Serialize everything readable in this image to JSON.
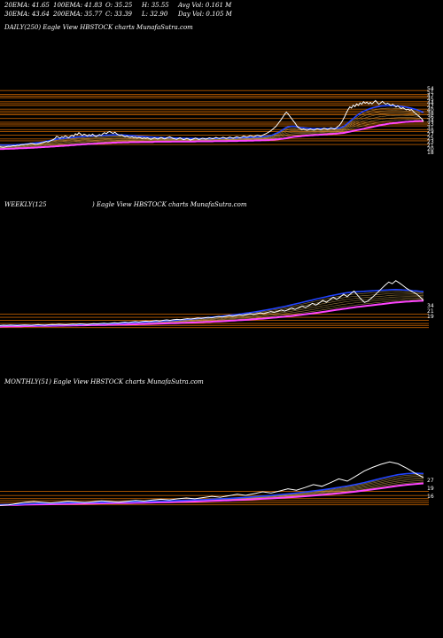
{
  "stats": {
    "ema20": "20EMA: 41.65",
    "ema100": "100EMA: 41.83",
    "open": "O: 35.25",
    "high": "H: 35.55",
    "avgvol": "Avg Vol: 0.161 M",
    "ema30": "30EMA: 43.64",
    "ema200": "200EMA: 35.77",
    "close": "C: 33.39",
    "low": "L: 32.90",
    "dayvol": "Day Vol: 0.105 M"
  },
  "panels": {
    "daily": "DAILY(250) Eagle    View  HBSTOCK charts MunafaSutra.com",
    "weekly_a": "WEEKLY(125",
    "weekly_b": ") Eagle    View  HBSTOCK charts MunafaSutra.com",
    "monthly": "MONTHLY(51) Eagle    View  HBSTOCK charts MunafaSutra.com"
  },
  "colors": {
    "background": "#000000",
    "price": "#ffffff",
    "ema_fast": "#2244ff",
    "ema_slow": "#ff44ff",
    "levels": "#cc6600",
    "ema_band": "#c8a050"
  },
  "chart_data": [
    {
      "type": "line",
      "name": "daily",
      "ylim": [
        12,
        52
      ],
      "levels": [
        50,
        48,
        47,
        46,
        44,
        43,
        42,
        40,
        39,
        38,
        37,
        35,
        33,
        32,
        31,
        29,
        28,
        26,
        24,
        23,
        21
      ],
      "right_ticks": [
        "54",
        "51",
        "47",
        "45",
        "44",
        "42",
        "40",
        "38",
        "36",
        "34",
        "33",
        "31",
        "29",
        "27",
        "25",
        "23",
        "21",
        "20",
        "18"
      ],
      "price": [
        19.8,
        19.6,
        19.5,
        19.7,
        19.9,
        20.1,
        20.0,
        20.2,
        20.4,
        20.3,
        20.6,
        20.5,
        20.8,
        21.0,
        20.9,
        21.2,
        21.1,
        21.4,
        21.6,
        21.5,
        21.3,
        21.1,
        21.3,
        21.5,
        21.8,
        22.0,
        22.3,
        22.6,
        22.4,
        22.8,
        23.2,
        23.6,
        24.2,
        25.4,
        25.0,
        24.4,
        25.2,
        24.8,
        25.6,
        25.2,
        24.6,
        25.4,
        26.0,
        25.4,
        26.8,
        26.2,
        27.4,
        26.6,
        25.8,
        26.6,
        26.2,
        25.6,
        26.4,
        25.8,
        26.6,
        25.8,
        25.2,
        25.8,
        26.4,
        25.9,
        26.8,
        27.4,
        26.8,
        27.6,
        28.0,
        27.4,
        27.0,
        27.6,
        26.8,
        26.2,
        25.8,
        26.2,
        25.6,
        25.2,
        25.6,
        25.0,
        24.8,
        25.2,
        24.6,
        24.9,
        24.4,
        24.8,
        24.6,
        24.2,
        24.6,
        24.3,
        24.6,
        24.2,
        23.8,
        24.2,
        24.6,
        24.3,
        23.9,
        24.4,
        24.8,
        24.4,
        24.0,
        24.4,
        24.9,
        25.2,
        24.7,
        24.2,
        24.0,
        23.8,
        24.2,
        24.6,
        24.1,
        23.6,
        23.9,
        24.3,
        24.0,
        23.4,
        23.7,
        24.1,
        24.5,
        24.1,
        23.7,
        24.0,
        24.4,
        24.2,
        23.9,
        24.2,
        24.6,
        24.4,
        24.1,
        24.4,
        24.8,
        24.5,
        24.2,
        24.5,
        24.9,
        24.6,
        24.3,
        24.6,
        25.0,
        24.7,
        24.4,
        24.8,
        25.2,
        24.9,
        24.6,
        25.0,
        25.5,
        25.3,
        25.0,
        25.4,
        25.8,
        25.5,
        25.2,
        25.6,
        26.0,
        25.8,
        25.5,
        25.9,
        26.4,
        26.8,
        27.3,
        27.8,
        28.4,
        29.2,
        30.0,
        30.8,
        32.0,
        33.2,
        34.5,
        35.8,
        37.2,
        38.4,
        37.5,
        36.2,
        35.0,
        33.8,
        32.6,
        31.2,
        30.2,
        29.6,
        29.0,
        29.4,
        29.0,
        28.6,
        28.9,
        29.3,
        29.0,
        28.7,
        29.1,
        29.5,
        29.2,
        28.9,
        29.3,
        29.8,
        29.5,
        29.1,
        29.5,
        30.0,
        29.7,
        29.3,
        29.8,
        30.6,
        31.4,
        32.6,
        34.2,
        36.0,
        38.0,
        39.8,
        41.2,
        40.6,
        42.2,
        41.4,
        42.8,
        42.0,
        43.4,
        42.6,
        44.0,
        43.2,
        43.8,
        42.8,
        43.6,
        42.8,
        43.8,
        44.6,
        43.6,
        42.6,
        43.4,
        44.2,
        43.4,
        42.6,
        43.2,
        42.6,
        42.0,
        42.6,
        42.0,
        41.2,
        41.8,
        41.0,
        40.4,
        40.8,
        40.2,
        39.6,
        40.0,
        39.4,
        39.8,
        38.8,
        38.0,
        37.2,
        36.5,
        35.6,
        34.8,
        33.4
      ],
      "ema_fast": [
        20.8,
        20.7,
        20.7,
        20.7,
        20.7,
        20.7,
        20.8,
        20.8,
        20.8,
        20.9,
        20.9,
        21.0,
        21.0,
        21.1,
        21.2,
        21.3,
        21.4,
        21.5,
        21.6,
        21.7,
        21.8,
        21.9,
        22.0,
        22.1,
        22.2,
        22.4,
        22.6,
        22.8,
        23.0,
        23.2,
        23.4,
        23.6,
        23.8,
        24.0,
        24.1,
        24.2,
        24.3,
        24.4,
        24.5,
        24.6,
        24.6,
        24.7,
        24.8,
        24.9,
        25.0,
        25.1,
        25.2,
        25.3,
        25.3,
        25.4,
        25.5,
        25.5,
        25.6,
        25.6,
        25.7,
        25.7,
        25.7,
        25.8,
        25.8,
        25.8,
        25.9,
        26.0,
        26.0,
        26.1,
        26.1,
        26.2,
        26.2,
        26.2,
        26.2,
        26.2,
        26.1,
        26.1,
        26.0,
        25.9,
        25.9,
        25.8,
        25.7,
        25.7,
        25.6,
        25.5,
        25.4,
        25.4,
        25.3,
        25.2,
        25.2,
        25.1,
        25.0,
        25.0,
        24.9,
        24.9,
        24.8,
        24.8,
        24.7,
        24.7,
        24.7,
        24.6,
        24.6,
        24.6,
        24.6,
        24.6,
        24.5,
        24.5,
        24.5,
        24.5,
        24.4,
        24.4,
        24.4,
        24.4,
        24.3,
        24.3,
        24.3,
        24.3,
        24.3,
        24.3,
        24.2,
        24.2,
        24.2,
        24.2,
        24.2,
        24.2,
        24.2,
        24.2,
        24.3,
        24.3,
        24.3,
        24.3,
        24.3,
        24.3,
        24.4,
        24.4,
        24.4,
        24.4,
        24.4,
        24.5,
        24.5,
        24.5,
        24.5,
        24.6,
        24.6,
        24.6,
        24.7,
        24.7,
        24.7,
        24.8,
        24.8,
        24.9,
        24.9,
        25.0,
        25.0,
        25.1,
        25.1,
        25.2,
        25.3,
        25.4,
        25.6,
        25.8,
        26.0,
        26.4,
        26.8,
        27.2,
        27.6,
        28.2,
        28.8,
        29.4,
        30.0,
        30.4,
        30.6,
        30.8,
        30.8,
        30.8,
        30.6,
        30.4,
        30.2,
        30.1,
        30.0,
        29.9,
        29.8,
        29.7,
        29.7,
        29.6,
        29.6,
        29.6,
        29.6,
        29.6,
        29.6,
        29.6,
        29.6,
        29.6,
        29.6,
        29.6,
        29.6,
        29.6,
        29.7,
        29.7,
        29.8,
        29.9,
        30.2,
        30.6,
        31.2,
        32.0,
        32.8,
        33.6,
        34.4,
        35.2,
        36.0,
        36.8,
        37.4,
        38.0,
        38.6,
        39.0,
        39.4,
        39.8,
        40.2,
        40.5,
        40.8,
        41.0,
        41.2,
        41.4,
        41.6,
        41.7,
        41.8,
        41.8,
        41.9,
        41.9,
        41.9,
        41.9,
        41.8,
        41.8,
        41.7,
        41.6,
        41.5,
        41.4,
        41.3,
        41.1,
        40.9,
        40.7,
        40.5,
        40.3,
        40.0,
        39.7,
        39.4,
        39.0,
        38.6,
        38.2
      ],
      "ema_slow": [
        18.6,
        18.6,
        18.6,
        18.7,
        18.7,
        18.7,
        18.8,
        18.8,
        18.8,
        18.9,
        18.9,
        19.0,
        19.0,
        19.0,
        19.1,
        19.1,
        19.2,
        19.2,
        19.3,
        19.3,
        19.4,
        19.4,
        19.5,
        19.5,
        19.6,
        19.6,
        19.7,
        19.7,
        19.8,
        19.9,
        19.9,
        20.0,
        20.1,
        20.1,
        20.2,
        20.3,
        20.3,
        20.4,
        20.5,
        20.5,
        20.6,
        20.7,
        20.7,
        20.8,
        20.9,
        20.9,
        21.0,
        21.1,
        21.1,
        21.2,
        21.3,
        21.3,
        21.4,
        21.4,
        21.5,
        21.5,
        21.6,
        21.6,
        21.7,
        21.7,
        21.8,
        21.8,
        21.9,
        21.9,
        22.0,
        22.0,
        22.0,
        22.1,
        22.1,
        22.1,
        22.2,
        22.2,
        22.2,
        22.2,
        22.3,
        22.3,
        22.3,
        22.3,
        22.3,
        22.3,
        22.4,
        22.4,
        22.4,
        22.4,
        22.4,
        22.4,
        22.4,
        22.4,
        22.5,
        22.5,
        22.5,
        22.5,
        22.5,
        22.5,
        22.5,
        22.5,
        22.5,
        22.5,
        22.6,
        22.6,
        22.6,
        22.6,
        22.6,
        22.6,
        22.6,
        22.6,
        22.6,
        22.6,
        22.6,
        22.6,
        22.6,
        22.6,
        22.7,
        22.7,
        22.7,
        22.7,
        22.7,
        22.7,
        22.7,
        22.7,
        22.7,
        22.7,
        22.8,
        22.8,
        22.8,
        22.8,
        22.8,
        22.8,
        22.8,
        22.8,
        22.9,
        22.9,
        22.9,
        22.9,
        22.9,
        22.9,
        23.0,
        23.0,
        23.0,
        23.0,
        23.0,
        23.1,
        23.1,
        23.1,
        23.1,
        23.2,
        23.2,
        23.2,
        23.2,
        23.3,
        23.3,
        23.3,
        23.4,
        23.4,
        23.5,
        23.5,
        23.6,
        23.7,
        23.8,
        23.9,
        24.0,
        24.1,
        24.3,
        24.4,
        24.6,
        24.8,
        24.9,
        25.1,
        25.2,
        25.3,
        25.4,
        25.5,
        25.6,
        25.7,
        25.8,
        25.8,
        25.9,
        26.0,
        26.0,
        26.1,
        26.2,
        26.2,
        26.3,
        26.3,
        26.4,
        26.5,
        26.5,
        26.6,
        26.6,
        26.7,
        26.8,
        26.8,
        26.9,
        27.0,
        27.1,
        27.2,
        27.3,
        27.5,
        27.7,
        27.9,
        28.1,
        28.3,
        28.5,
        28.7,
        28.9,
        29.1,
        29.3,
        29.5,
        29.7,
        29.9,
        30.1,
        30.3,
        30.5,
        30.7,
        30.9,
        31.1,
        31.3,
        31.5,
        31.7,
        31.8,
        32.0,
        32.1,
        32.3,
        32.4,
        32.5,
        32.6,
        32.7,
        32.8,
        32.9,
        33.0,
        33.1,
        33.2,
        33.2,
        33.3,
        33.4,
        33.4,
        33.5,
        33.5,
        33.5,
        33.6,
        33.6,
        33.6
      ]
    },
    {
      "type": "line",
      "name": "weekly",
      "ylim": [
        5,
        110
      ],
      "levels": [
        20,
        17,
        14,
        11,
        9,
        7
      ],
      "right_ticks": [
        "34",
        "21",
        "19"
      ],
      "price": [
        9.0,
        9.3,
        9.1,
        9.4,
        9.2,
        9.0,
        9.3,
        9.6,
        9.4,
        9.2,
        9.5,
        9.8,
        9.6,
        9.3,
        9.7,
        10.0,
        9.8,
        10.2,
        10.0,
        9.7,
        10.1,
        10.4,
        10.2,
        10.6,
        10.3,
        10.0,
        10.4,
        10.8,
        10.5,
        10.9,
        11.2,
        10.8,
        11.3,
        11.7,
        11.4,
        11.9,
        12.3,
        11.9,
        12.4,
        12.8,
        12.4,
        12.9,
        13.3,
        12.9,
        13.4,
        13.8,
        13.4,
        14.0,
        14.5,
        14.0,
        14.6,
        15.0,
        14.6,
        15.2,
        15.7,
        15.3,
        15.8,
        16.3,
        15.9,
        16.5,
        17.0,
        16.5,
        17.2,
        17.8,
        17.2,
        17.9,
        18.6,
        18.0,
        18.7,
        19.4,
        18.8,
        19.6,
        20.4,
        19.7,
        20.5,
        21.3,
        20.6,
        21.6,
        22.6,
        21.8,
        22.8,
        24.0,
        23.0,
        24.4,
        26.0,
        24.6,
        26.2,
        28.0,
        26.4,
        28.4,
        30.6,
        28.8,
        31.0,
        33.4,
        31.6,
        34.0,
        36.5,
        34.4,
        36.8,
        39.4,
        37.0,
        39.8,
        42.4,
        38.4,
        34.6,
        31.4,
        32.8,
        35.6,
        38.6,
        41.8,
        45.2,
        48.4,
        51.2,
        49.6,
        52.6,
        50.4,
        48.0,
        45.4,
        43.2,
        41.4,
        39.6,
        36.8,
        33.4
      ],
      "ema_fast": [
        9.0,
        9.1,
        9.1,
        9.2,
        9.2,
        9.2,
        9.3,
        9.3,
        9.3,
        9.3,
        9.4,
        9.4,
        9.4,
        9.5,
        9.5,
        9.6,
        9.6,
        9.7,
        9.7,
        9.8,
        9.8,
        9.9,
        10.0,
        10.1,
        10.1,
        10.2,
        10.3,
        10.4,
        10.5,
        10.6,
        10.7,
        10.8,
        10.9,
        11.0,
        11.2,
        11.3,
        11.5,
        11.6,
        11.8,
        11.9,
        12.1,
        12.2,
        12.4,
        12.6,
        12.8,
        13.0,
        13.2,
        13.4,
        13.6,
        13.8,
        14.1,
        14.3,
        14.6,
        14.8,
        15.1,
        15.4,
        15.7,
        16.0,
        16.3,
        16.6,
        16.9,
        17.2,
        17.6,
        17.9,
        18.3,
        18.7,
        19.1,
        19.5,
        19.9,
        20.3,
        20.8,
        21.3,
        21.8,
        22.3,
        22.8,
        23.4,
        24.0,
        24.6,
        25.2,
        25.9,
        26.6,
        27.3,
        28.0,
        28.8,
        29.6,
        30.4,
        31.2,
        32.0,
        32.8,
        33.6,
        34.4,
        35.2,
        36.0,
        36.8,
        37.5,
        38.2,
        38.9,
        39.6,
        40.2,
        40.8,
        41.2,
        41.6,
        41.8,
        42.0,
        42.2,
        42.4,
        42.6,
        42.8,
        43.0,
        43.2,
        43.4,
        43.6,
        43.8,
        43.9,
        43.8,
        43.6,
        43.4,
        43.2,
        42.9,
        42.6,
        42.2,
        41.8
      ],
      "ema_slow": [
        8.0,
        8.1,
        8.1,
        8.2,
        8.2,
        8.3,
        8.3,
        8.4,
        8.4,
        8.5,
        8.5,
        8.6,
        8.6,
        8.7,
        8.7,
        8.8,
        8.8,
        8.9,
        8.9,
        9.0,
        9.0,
        9.1,
        9.1,
        9.2,
        9.2,
        9.3,
        9.4,
        9.4,
        9.5,
        9.5,
        9.6,
        9.7,
        9.7,
        9.8,
        9.9,
        9.9,
        10.0,
        10.1,
        10.2,
        10.2,
        10.3,
        10.4,
        10.5,
        10.6,
        10.7,
        10.8,
        10.9,
        11.0,
        11.1,
        11.2,
        11.3,
        11.4,
        11.5,
        11.6,
        11.8,
        11.9,
        12.0,
        12.2,
        12.3,
        12.5,
        12.6,
        12.8,
        12.9,
        13.1,
        13.3,
        13.5,
        13.7,
        13.9,
        14.1,
        14.3,
        14.5,
        14.7,
        15.0,
        15.2,
        15.5,
        15.7,
        16.0,
        16.3,
        16.6,
        16.9,
        17.2,
        17.5,
        17.9,
        18.2,
        18.6,
        19.0,
        19.4,
        19.8,
        20.2,
        20.7,
        21.1,
        21.6,
        22.1,
        22.6,
        23.1,
        23.6,
        24.1,
        24.6,
        25.1,
        25.6,
        26.1,
        26.5,
        27.0,
        27.4,
        27.8,
        28.2,
        28.6,
        29.0,
        29.4,
        29.8,
        30.2,
        30.6,
        31.0,
        31.3,
        31.6,
        31.9,
        32.2,
        32.4,
        32.6,
        32.8,
        33.0,
        33.1
      ]
    },
    {
      "type": "line",
      "name": "monthly",
      "ylim": [
        5,
        110
      ],
      "levels": [
        20,
        16,
        13,
        11,
        9,
        7
      ],
      "right_ticks": [
        "27",
        "19",
        "16"
      ],
      "price": [
        6.5,
        7.0,
        8.2,
        9.6,
        10.2,
        9.4,
        8.8,
        9.6,
        10.4,
        9.8,
        9.2,
        10.0,
        10.8,
        10.2,
        9.6,
        10.4,
        11.2,
        10.6,
        11.6,
        12.4,
        11.8,
        12.8,
        13.6,
        12.8,
        14.0,
        15.2,
        14.4,
        15.8,
        17.2,
        16.2,
        17.8,
        19.6,
        18.4,
        20.4,
        22.6,
        21.2,
        23.8,
        26.6,
        25.0,
        28.4,
        32.2,
        30.0,
        34.8,
        39.8,
        43.4,
        46.4,
        48.6,
        46.8,
        42.6,
        37.8,
        33.4
      ],
      "ema_fast": [
        7.0,
        7.2,
        7.5,
        7.9,
        8.3,
        8.5,
        8.6,
        8.8,
        9.0,
        9.1,
        9.2,
        9.3,
        9.5,
        9.6,
        9.7,
        9.8,
        10.0,
        10.2,
        10.4,
        10.6,
        10.8,
        11.1,
        11.4,
        11.7,
        12.0,
        12.4,
        12.8,
        13.2,
        13.7,
        14.2,
        14.8,
        15.4,
        16.0,
        16.8,
        17.6,
        18.4,
        19.4,
        20.4,
        21.4,
        22.6,
        23.9,
        25.2,
        26.8,
        28.6,
        30.6,
        32.6,
        34.6,
        36.2,
        37.2,
        37.6,
        37.4
      ],
      "ema_slow": [
        6.8,
        6.9,
        7.0,
        7.2,
        7.4,
        7.5,
        7.6,
        7.8,
        7.9,
        8.0,
        8.1,
        8.2,
        8.4,
        8.5,
        8.6,
        8.7,
        8.9,
        9.0,
        9.2,
        9.4,
        9.6,
        9.8,
        10.0,
        10.2,
        10.5,
        10.8,
        11.0,
        11.3,
        11.7,
        12.0,
        12.4,
        12.8,
        13.2,
        13.7,
        14.2,
        14.7,
        15.3,
        16.0,
        16.6,
        17.4,
        18.2,
        19.0,
        19.9,
        20.9,
        22.0,
        23.1,
        24.3,
        25.4,
        26.4,
        27.2,
        27.8
      ]
    }
  ]
}
